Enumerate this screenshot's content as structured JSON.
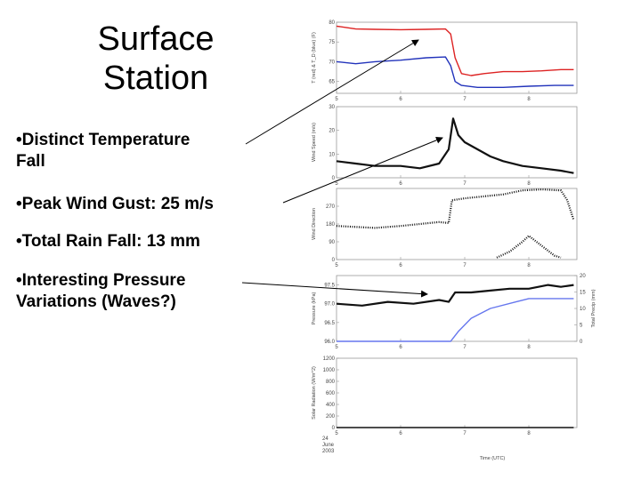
{
  "slide": {
    "title_line1": "Surface",
    "title_line2": "Station",
    "bullets": [
      {
        "bullet": "•",
        "line1": "Distinct Temperature",
        "line2": "Fall"
      },
      {
        "bullet": "•",
        "line1": "Peak Wind Gust: 25 m/s",
        "line2": ""
      },
      {
        "bullet": "•",
        "line1": "Total Rain Fall: 13 mm",
        "line2": ""
      },
      {
        "bullet": "•",
        "line1": "Interesting Pressure",
        "line2": "Variations (Waves?)"
      }
    ]
  },
  "chart_data": [
    {
      "type": "line",
      "ylabel": "T (red) & T_D (blue) (F)",
      "ylim": [
        62,
        80
      ],
      "yticks": [
        65,
        70,
        75,
        80
      ],
      "xticks": [
        "5",
        "6",
        "7",
        "8"
      ],
      "series": [
        {
          "color": "#dd2222",
          "x": [
            5.0,
            5.3,
            5.6,
            6.0,
            6.4,
            6.7,
            6.78,
            6.85,
            6.95,
            7.1,
            7.3,
            7.6,
            7.9,
            8.2,
            8.5,
            8.7
          ],
          "y": [
            79,
            78.3,
            78.2,
            78.1,
            78.2,
            78.3,
            77,
            71,
            67,
            66.5,
            67,
            67.5,
            67.5,
            67.7,
            68,
            68
          ]
        },
        {
          "color": "#2233bb",
          "x": [
            5.0,
            5.3,
            5.6,
            6.0,
            6.4,
            6.7,
            6.78,
            6.85,
            6.95,
            7.2,
            7.6,
            8.0,
            8.4,
            8.7
          ],
          "y": [
            70,
            69.5,
            70,
            70.4,
            71,
            71.2,
            69,
            65,
            64,
            63.5,
            63.5,
            63.8,
            64,
            64
          ]
        }
      ]
    },
    {
      "type": "line",
      "ylabel": "Wind Speed (m/s)",
      "ylim": [
        0,
        30
      ],
      "yticks": [
        0,
        10,
        20,
        30
      ],
      "xticks": [
        "5",
        "6",
        "7",
        "8"
      ],
      "series": [
        {
          "color": "#111111",
          "x": [
            5.0,
            5.3,
            5.6,
            6.0,
            6.3,
            6.6,
            6.75,
            6.82,
            6.9,
            7.0,
            7.2,
            7.4,
            7.6,
            7.9,
            8.2,
            8.5,
            8.7
          ],
          "y": [
            7,
            6,
            5,
            5,
            4,
            6,
            12,
            25,
            18,
            15,
            12,
            9,
            7,
            5,
            4,
            3,
            2
          ]
        }
      ]
    },
    {
      "type": "scatter",
      "ylabel": "Wind Direction",
      "ylim": [
        0,
        360
      ],
      "yticks": [
        0,
        90,
        180,
        270
      ],
      "xticks": [
        "5",
        "6",
        "7",
        "8"
      ],
      "series": [
        {
          "color": "#111111",
          "x": [
            5.0,
            5.3,
            5.6,
            6.0,
            6.3,
            6.6,
            6.75,
            6.8,
            7.0,
            7.3,
            7.6,
            7.9,
            8.2,
            8.5,
            8.6,
            8.7
          ],
          "y": [
            170,
            165,
            160,
            170,
            180,
            190,
            185,
            300,
            310,
            320,
            330,
            350,
            355,
            350,
            300,
            200
          ]
        },
        {
          "color": "#111111",
          "x": [
            7.5,
            7.7,
            7.9,
            8.0,
            8.4,
            8.5
          ],
          "y": [
            10,
            40,
            90,
            120,
            20,
            10
          ]
        }
      ]
    },
    {
      "type": "line",
      "ylabel": "Pressure (kPa)",
      "ylabel_right": "Total Precip (mm)",
      "ylim": [
        96.0,
        97.75
      ],
      "yticks": [
        96.0,
        96.5,
        97.0,
        97.5
      ],
      "ylim_right": [
        0,
        20
      ],
      "yticks_right": [
        0,
        5,
        10,
        15,
        20
      ],
      "xticks": [
        "5",
        "6",
        "7",
        "8"
      ],
      "series": [
        {
          "color": "#111111",
          "axis": "left",
          "x": [
            5.0,
            5.4,
            5.8,
            6.2,
            6.6,
            6.75,
            6.85,
            7.1,
            7.4,
            7.7,
            8.0,
            8.3,
            8.5,
            8.7
          ],
          "y": [
            97.0,
            96.95,
            97.05,
            97.0,
            97.1,
            97.05,
            97.3,
            97.3,
            97.35,
            97.4,
            97.4,
            97.5,
            97.45,
            97.5
          ]
        },
        {
          "color": "#6677ee",
          "axis": "right",
          "x": [
            5.0,
            6.78,
            6.9,
            7.1,
            7.4,
            7.8,
            8.0,
            8.3,
            8.7
          ],
          "y": [
            0,
            0,
            3,
            7,
            10,
            12,
            13,
            13,
            13
          ]
        }
      ]
    },
    {
      "type": "line",
      "ylabel": "Solar Radiation (W/m^2)",
      "ylim": [
        0,
        1200
      ],
      "yticks": [
        0,
        200,
        400,
        600,
        800,
        1000,
        1200
      ],
      "xticks": [
        "5",
        "6",
        "7",
        "8"
      ],
      "xlabel": "Time (UTC)",
      "date_label": [
        "24",
        "June",
        "2003"
      ],
      "series": [
        {
          "color": "#111111",
          "x": [
            5.0,
            8.7
          ],
          "y": [
            0,
            0
          ]
        }
      ]
    }
  ]
}
